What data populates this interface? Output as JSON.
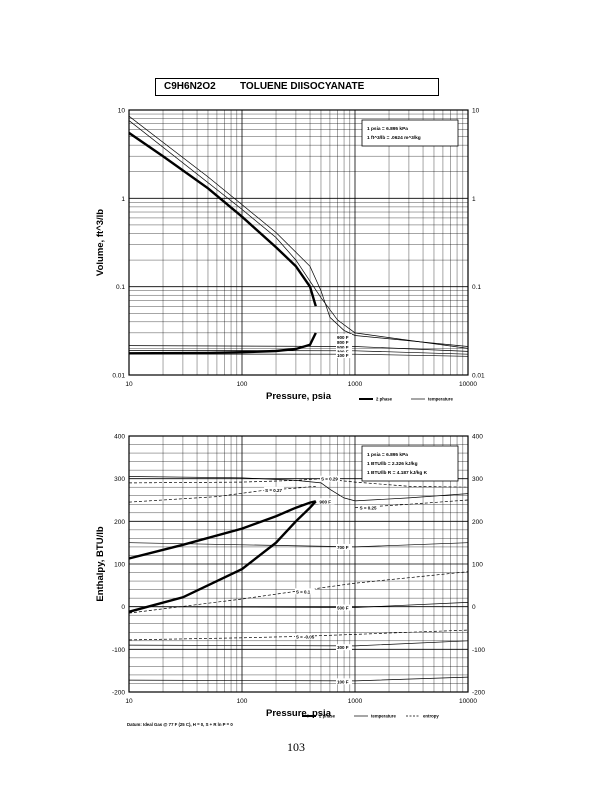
{
  "header": {
    "formula": "C9H6N2O2",
    "name": "TOLUENE DIISOCYANATE"
  },
  "page_number": "103",
  "chart_data": [
    {
      "type": "line",
      "xlabel": "Pressure,  psia",
      "ylabel": "Volume, ft^3/lb",
      "xscale": "log",
      "yscale": "log",
      "xlim": [
        10,
        10000
      ],
      "ylim": [
        0.01,
        10
      ],
      "x_ticks": [
        "10",
        "100",
        "1000",
        "10000"
      ],
      "y_ticks": [
        "0.01",
        "0.1",
        "1",
        "10"
      ],
      "y_ticks_right": [
        "0.01",
        "0.1",
        "1",
        "10"
      ],
      "grid": true,
      "legend_position": "bottom-right",
      "conversion_box": [
        "1 psia = 6.895 kPa",
        "1 ft^3/lb = .0624 m^3/kg"
      ],
      "legend": [
        {
          "label": "2 phase",
          "style": "heavy"
        },
        {
          "label": "temperature",
          "style": "thin"
        }
      ],
      "two_phase_dome": {
        "vapor": [
          [
            10,
            5.5
          ],
          [
            20,
            3.0
          ],
          [
            50,
            1.3
          ],
          [
            100,
            0.62
          ],
          [
            200,
            0.28
          ],
          [
            300,
            0.17
          ],
          [
            400,
            0.1
          ],
          [
            450,
            0.06
          ]
        ],
        "liquid": [
          [
            10,
            0.0176
          ],
          [
            50,
            0.0178
          ],
          [
            100,
            0.0181
          ],
          [
            200,
            0.0187
          ],
          [
            300,
            0.0197
          ],
          [
            400,
            0.022
          ],
          [
            450,
            0.03
          ]
        ]
      },
      "isotherms": [
        {
          "label": "900 F",
          "points": [
            [
              10,
              8.5
            ],
            [
              50,
              1.75
            ],
            [
              100,
              0.85
            ],
            [
              200,
              0.41
            ],
            [
              400,
              0.17
            ],
            [
              500,
              0.09
            ],
            [
              600,
              0.045
            ],
            [
              800,
              0.032
            ],
            [
              1000,
              0.028
            ],
            [
              10000,
              0.021
            ]
          ]
        },
        {
          "label": "800 F",
          "points": [
            [
              10,
              7.6
            ],
            [
              100,
              0.75
            ],
            [
              200,
              0.36
            ],
            [
              300,
              0.2
            ],
            [
              500,
              0.075
            ],
            [
              700,
              0.042
            ],
            [
              1000,
              0.03
            ],
            [
              10000,
              0.02
            ]
          ]
        },
        {
          "label": "500 F",
          "points": [
            [
              10,
              0.0215
            ],
            [
              1000,
              0.021
            ],
            [
              10000,
              0.0185
            ]
          ]
        },
        {
          "label": "300 F",
          "points": [
            [
              10,
              0.019
            ],
            [
              1000,
              0.0188
            ],
            [
              10000,
              0.0172
            ]
          ]
        },
        {
          "label": "100 F",
          "points": [
            [
              10,
              0.0173
            ],
            [
              1000,
              0.0172
            ],
            [
              10000,
              0.0163
            ]
          ]
        }
      ],
      "isotherm_labels": [
        {
          "label": "900 F",
          "at": [
            1000,
            0.027
          ]
        },
        {
          "label": "800 F",
          "at": [
            1000,
            0.0235
          ]
        },
        {
          "label": "500 F",
          "at": [
            1000,
            0.0208
          ]
        },
        {
          "label": "300 F",
          "at": [
            1000,
            0.0185
          ]
        },
        {
          "label": "100 F",
          "at": [
            1000,
            0.0168
          ]
        }
      ]
    },
    {
      "type": "line",
      "xlabel": "Pressure,  psia",
      "ylabel": "Enthalpy, BTU/lb",
      "xscale": "log",
      "yscale": "linear",
      "xlim": [
        10,
        10000
      ],
      "ylim": [
        -200,
        400
      ],
      "x_ticks": [
        "10",
        "100",
        "1000",
        "10000"
      ],
      "y_ticks": [
        "-200",
        "-100",
        "0",
        "100",
        "200",
        "300",
        "400"
      ],
      "y_ticks_right": [
        "-200",
        "-100",
        "0",
        "100",
        "200",
        "300",
        "400"
      ],
      "grid": true,
      "legend_position": "bottom-right",
      "conversion_box": [
        "1 psia = 6.895 kPa",
        "1 BTU/lb = 2.326 kJ/kg",
        "1 BTU/lb R = 4.187 kJ/kg K"
      ],
      "datum_note": "Datum: Ideal Gas @ 77 F (25 C), H = 0, S + R ln P = 0",
      "legend": [
        {
          "label": "2 phase",
          "style": "heavy"
        },
        {
          "label": "temperature",
          "style": "thin"
        },
        {
          "label": "entropy",
          "style": "dashed"
        }
      ],
      "two_phase_dome": {
        "vapor": [
          [
            10,
            113
          ],
          [
            30,
            145
          ],
          [
            100,
            183
          ],
          [
            200,
            212
          ],
          [
            300,
            232
          ],
          [
            400,
            244
          ],
          [
            450,
            247
          ]
        ],
        "liquid": [
          [
            10,
            -12
          ],
          [
            30,
            22
          ],
          [
            100,
            88
          ],
          [
            200,
            150
          ],
          [
            300,
            200
          ],
          [
            400,
            232
          ],
          [
            450,
            247
          ]
        ]
      },
      "isotherms": [
        {
          "label": "900 F",
          "points": [
            [
              10,
              305
            ],
            [
              100,
              302
            ],
            [
              300,
              296
            ],
            [
              500,
              290
            ],
            [
              600,
              275
            ],
            [
              800,
              255
            ],
            [
              1000,
              248
            ],
            [
              3000,
              255
            ],
            [
              10000,
              265
            ]
          ]
        },
        {
          "label": "700 F",
          "points": [
            [
              10,
              150
            ],
            [
              1000,
              140
            ],
            [
              10000,
              150
            ]
          ]
        },
        {
          "label": "500 F",
          "points": [
            [
              10,
              0
            ],
            [
              1000,
              -2
            ],
            [
              10000,
              10
            ]
          ]
        },
        {
          "label": "300 F",
          "points": [
            [
              10,
              -90
            ],
            [
              1000,
              -92
            ],
            [
              10000,
              -80
            ]
          ]
        },
        {
          "label": "100 F",
          "points": [
            [
              10,
              -172
            ],
            [
              1000,
              -174
            ],
            [
              10000,
              -165
            ]
          ]
        }
      ],
      "isotherm_labels": [
        {
          "label": "900 F",
          "at": [
            700,
            247
          ]
        },
        {
          "label": "700 F",
          "at": [
            1000,
            140
          ]
        },
        {
          "label": "500 F",
          "at": [
            1000,
            -2
          ]
        },
        {
          "label": "300 F",
          "at": [
            1000,
            -95
          ]
        },
        {
          "label": "100 F",
          "at": [
            1000,
            -175
          ]
        }
      ],
      "isentropes": [
        {
          "label": "S = 0.29",
          "points": [
            [
              10,
              290
            ],
            [
              100,
              292
            ],
            [
              300,
              296
            ],
            [
              500,
              300
            ],
            [
              1000,
              292
            ],
            [
              3000,
              282
            ],
            [
              10000,
              280
            ]
          ]
        },
        {
          "label": "S = 0.27",
          "points": [
            [
              10,
              245
            ],
            [
              60,
              258
            ],
            [
              150,
              272
            ],
            [
              300,
              278
            ],
            [
              450,
              282
            ]
          ]
        },
        {
          "label": "S = 0.25",
          "points": [
            [
              1000,
              232
            ],
            [
              3000,
              240
            ],
            [
              10000,
              250
            ]
          ]
        },
        {
          "label": "S = 0.1",
          "points": [
            [
              10,
              -15
            ],
            [
              100,
              18
            ],
            [
              300,
              36
            ],
            [
              1000,
              55
            ],
            [
              3000,
              68
            ],
            [
              10000,
              82
            ]
          ]
        },
        {
          "label": "S = -0.05",
          "points": [
            [
              10,
              -78
            ],
            [
              100,
              -73
            ],
            [
              300,
              -70
            ],
            [
              1000,
              -65
            ],
            [
              3000,
              -60
            ],
            [
              10000,
              -55
            ]
          ]
        }
      ],
      "isentrope_labels": [
        {
          "label": "S = 0.29",
          "at": [
            500,
            300
          ]
        },
        {
          "label": "S = 0.27",
          "at": [
            160,
            274
          ]
        },
        {
          "label": "S = 0.25",
          "at": [
            1100,
            232
          ]
        },
        {
          "label": "S = 0.1",
          "at": [
            300,
            36
          ]
        },
        {
          "label": "S = -0.05",
          "at": [
            300,
            -70
          ]
        }
      ]
    }
  ]
}
